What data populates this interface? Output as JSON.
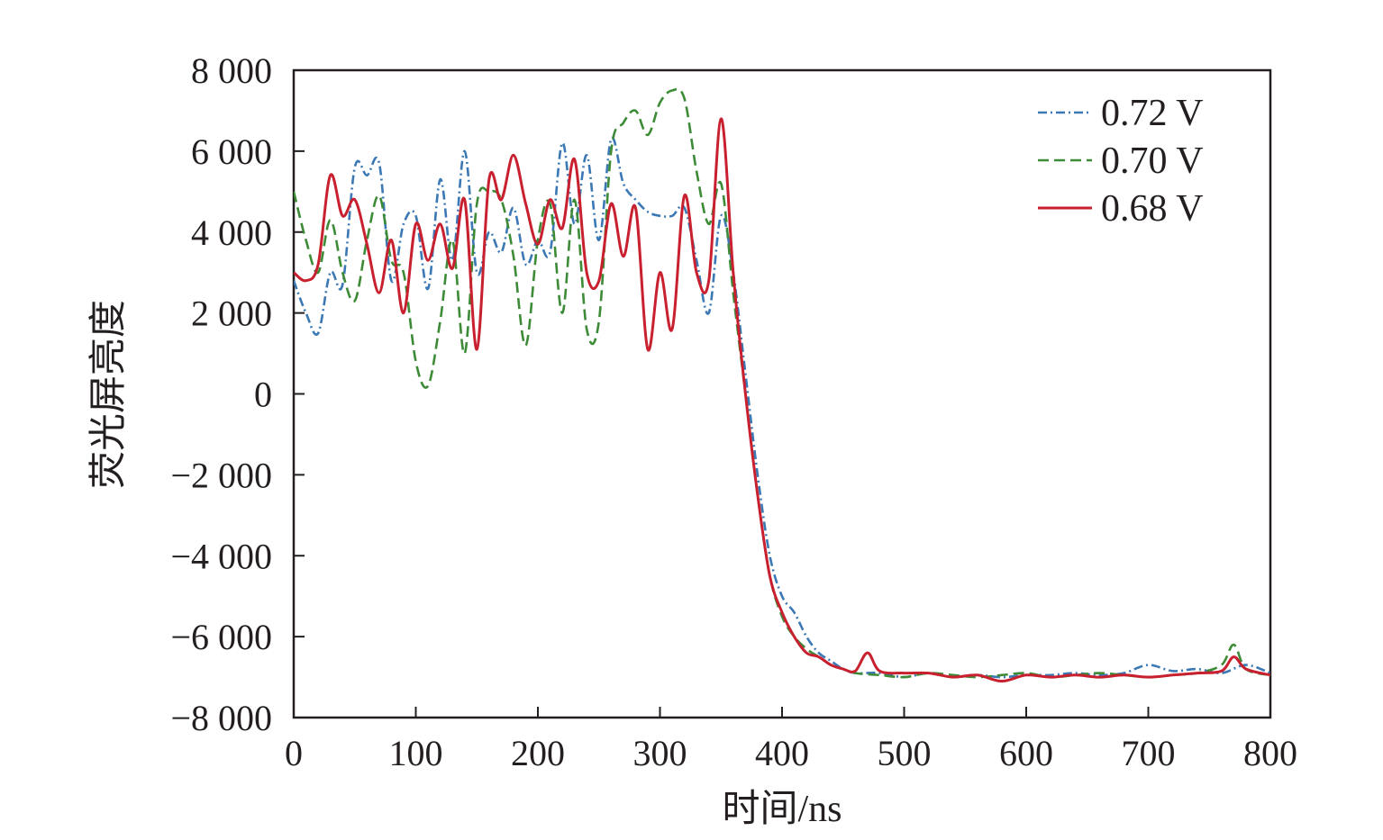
{
  "chart_data": {
    "type": "line",
    "xlabel": "时间/ns",
    "ylabel": "荧光屏亮度",
    "xlim": [
      0,
      800
    ],
    "ylim": [
      -8000,
      8000
    ],
    "x_ticks": [
      0,
      100,
      200,
      300,
      400,
      500,
      600,
      700,
      800
    ],
    "x_tick_labels": [
      "0",
      "100",
      "200",
      "300",
      "400",
      "500",
      "600",
      "700",
      "800"
    ],
    "y_ticks": [
      8000,
      6000,
      4000,
      2000,
      0,
      -2000,
      -4000,
      -6000,
      -8000
    ],
    "y_tick_labels": [
      "8 000",
      "6 000",
      "4 000",
      "2 000",
      "0",
      "−2 000",
      "−4 000",
      "−6 000",
      "−8 000"
    ],
    "grid": false,
    "legend_position": "top-right",
    "series": [
      {
        "name": "0.72 V",
        "color": "#3b78b4",
        "dash": "dashdot",
        "x": [
          0,
          10,
          20,
          30,
          40,
          50,
          60,
          70,
          80,
          90,
          100,
          110,
          120,
          130,
          140,
          150,
          160,
          170,
          180,
          190,
          200,
          210,
          220,
          230,
          240,
          250,
          260,
          270,
          280,
          290,
          300,
          310,
          320,
          330,
          340,
          350,
          360,
          370,
          380,
          390,
          400,
          410,
          420,
          430,
          440,
          450,
          460,
          480,
          500,
          520,
          540,
          560,
          580,
          600,
          620,
          640,
          660,
          680,
          700,
          720,
          740,
          760,
          780,
          800
        ],
        "y": [
          2800,
          2000,
          1500,
          3000,
          2700,
          5600,
          5400,
          5700,
          2800,
          4200,
          4400,
          2600,
          5300,
          3300,
          6000,
          3000,
          4000,
          3500,
          4600,
          3200,
          3800,
          3500,
          6200,
          4200,
          5900,
          3800,
          6300,
          5200,
          4800,
          4500,
          4400,
          4400,
          4600,
          3300,
          2000,
          4400,
          3000,
          500,
          -2000,
          -4000,
          -5000,
          -5400,
          -6000,
          -6400,
          -6600,
          -6800,
          -6900,
          -6900,
          -7000,
          -6900,
          -7000,
          -6950,
          -7000,
          -6950,
          -6950,
          -6900,
          -6950,
          -6900,
          -6700,
          -6850,
          -6800,
          -6900,
          -6700,
          -6900
        ]
      },
      {
        "name": "0.70 V",
        "color": "#3d8b37",
        "dash": "dashed",
        "x": [
          0,
          10,
          20,
          30,
          40,
          50,
          60,
          70,
          80,
          90,
          100,
          110,
          120,
          130,
          140,
          150,
          160,
          170,
          180,
          190,
          200,
          210,
          220,
          230,
          240,
          250,
          260,
          270,
          280,
          290,
          300,
          310,
          320,
          330,
          340,
          350,
          360,
          370,
          380,
          390,
          400,
          410,
          420,
          430,
          440,
          450,
          460,
          480,
          500,
          520,
          540,
          560,
          580,
          600,
          620,
          640,
          660,
          680,
          700,
          720,
          740,
          760,
          770,
          780,
          800
        ],
        "y": [
          5000,
          3800,
          3000,
          4300,
          3000,
          2300,
          3800,
          4900,
          3300,
          3000,
          800,
          200,
          1800,
          3800,
          1000,
          4700,
          5000,
          4800,
          3400,
          1200,
          3800,
          4700,
          2000,
          4800,
          1600,
          1800,
          6000,
          6700,
          7000,
          6400,
          7200,
          7500,
          7300,
          5500,
          4200,
          5200,
          2500,
          0,
          -2500,
          -4500,
          -5500,
          -6000,
          -6300,
          -6500,
          -6700,
          -6800,
          -6900,
          -6950,
          -7000,
          -6900,
          -6950,
          -7000,
          -6950,
          -6900,
          -7000,
          -6950,
          -6900,
          -6950,
          -7000,
          -6950,
          -6900,
          -6700,
          -6200,
          -6800,
          -6950
        ]
      },
      {
        "name": "0.68 V",
        "color": "#c8202f",
        "dash": "solid",
        "x": [
          0,
          10,
          20,
          30,
          40,
          50,
          60,
          70,
          80,
          90,
          100,
          110,
          120,
          130,
          140,
          150,
          160,
          170,
          180,
          190,
          200,
          210,
          220,
          230,
          240,
          250,
          260,
          270,
          280,
          290,
          300,
          310,
          320,
          330,
          340,
          350,
          360,
          370,
          380,
          390,
          400,
          410,
          420,
          430,
          440,
          450,
          460,
          470,
          480,
          500,
          520,
          540,
          560,
          580,
          600,
          620,
          640,
          660,
          680,
          700,
          720,
          740,
          760,
          770,
          780,
          800
        ],
        "y": [
          3000,
          2800,
          3200,
          5400,
          4400,
          4800,
          3700,
          2500,
          3800,
          2000,
          4200,
          3300,
          4200,
          3100,
          4800,
          1100,
          5300,
          4800,
          5900,
          4700,
          3700,
          4800,
          4100,
          5800,
          3000,
          2800,
          4700,
          3400,
          4600,
          1100,
          3000,
          1600,
          4900,
          3000,
          2800,
          6800,
          3000,
          0,
          -2500,
          -4500,
          -5400,
          -6000,
          -6400,
          -6500,
          -6700,
          -6800,
          -6850,
          -6400,
          -6850,
          -6900,
          -6900,
          -7000,
          -6950,
          -7100,
          -6950,
          -7000,
          -6950,
          -7000,
          -6950,
          -7000,
          -6950,
          -6900,
          -6850,
          -6500,
          -6800,
          -6950
        ]
      }
    ]
  }
}
